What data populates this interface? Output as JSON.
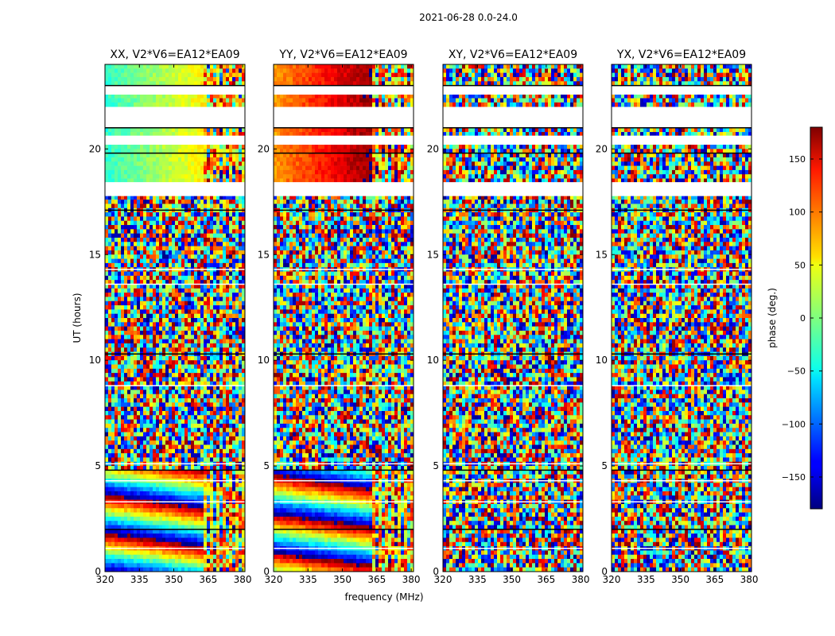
{
  "figure_title": "2021-06-28 0.0-24.0",
  "chart_data": {
    "type": "heatmap",
    "xlabel": "frequency (MHz)",
    "ylabel": "UT (hours)",
    "xlim": [
      320,
      381
    ],
    "ylim": [
      0,
      24
    ],
    "x_ticks": [
      320,
      335,
      350,
      365,
      380
    ],
    "y_ticks": [
      0,
      5,
      10,
      15,
      20
    ],
    "panels": [
      {
        "title": "XX, V2*V6=EA12*EA09",
        "pol": "XX"
      },
      {
        "title": "YY, V2*V6=EA12*EA09",
        "pol": "YY"
      },
      {
        "title": "XY, V2*V6=EA12*EA09",
        "pol": "XY"
      },
      {
        "title": "YX, V2*V6=EA12*EA09",
        "pol": "YX"
      }
    ],
    "colorbar": {
      "label": "phase (deg.)",
      "range": [
        -180,
        180
      ],
      "ticks": [
        -150,
        -100,
        -50,
        0,
        50,
        100,
        150
      ],
      "colormap": "jet"
    },
    "gaps_hours": [
      [
        22.6,
        23.0
      ],
      [
        21.0,
        21.9
      ],
      [
        17.8,
        18.4
      ],
      [
        20.3,
        20.6
      ]
    ]
  }
}
